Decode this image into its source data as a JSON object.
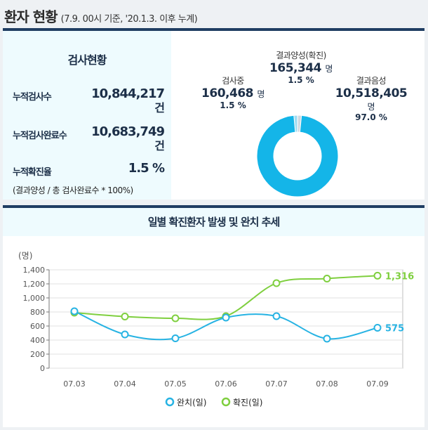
{
  "header": {
    "title": "환자 현황",
    "subtitle": "(7.9. 00시 기준, '20.1.3. 이후 누계)"
  },
  "test_status": {
    "title": "검사현황",
    "rows": [
      {
        "label": "누적검사수",
        "value": "10,844,217",
        "unit": "건"
      },
      {
        "label": "누적검사완료수",
        "value": "10,683,749",
        "unit": "건"
      },
      {
        "label": "누적확진율",
        "value": "1.5 %",
        "unit": ""
      }
    ],
    "formula": "(결과양성 / 총 검사완료수 * 100%)"
  },
  "donut": {
    "segments": [
      {
        "name": "결과양성(확진)",
        "value": "165,344",
        "unit": "명",
        "pct": "1.5 %",
        "pct_value": 1.5,
        "color": "#cfd8e0"
      },
      {
        "name": "결과음성",
        "value": "10,518,405",
        "unit": "명",
        "pct": "97.0 %",
        "pct_value": 97.0,
        "color": "#14b5e8"
      },
      {
        "name": "검사중",
        "value": "160,468",
        "unit": "명",
        "pct": "1.5 %",
        "pct_value": 1.5,
        "color": "#9fdcf2"
      }
    ]
  },
  "chart_data": {
    "type": "line",
    "title": "일별 확진환자 발생 및 완치 추세",
    "ylabel": "(명)",
    "ylim": [
      0,
      1400
    ],
    "yticks": [
      0,
      200,
      400,
      600,
      800,
      1000,
      1200,
      1400
    ],
    "ytick_labels": [
      "0",
      "200",
      "400",
      "600",
      "800",
      "1,000",
      "1,200",
      "1,400"
    ],
    "categories": [
      "07.03",
      "07.04",
      "07.05",
      "07.06",
      "07.07",
      "07.08",
      "07.09"
    ],
    "series": [
      {
        "name": "완치(일)",
        "color": "#27b3e3",
        "values": [
          810,
          480,
          425,
          720,
          740,
          420,
          575
        ],
        "end_label": "575"
      },
      {
        "name": "확진(일)",
        "color": "#7fcf3f",
        "values": [
          790,
          735,
          710,
          740,
          1210,
          1275,
          1316
        ],
        "end_label": "1,316"
      }
    ],
    "grid": true,
    "legend": "bottom"
  }
}
